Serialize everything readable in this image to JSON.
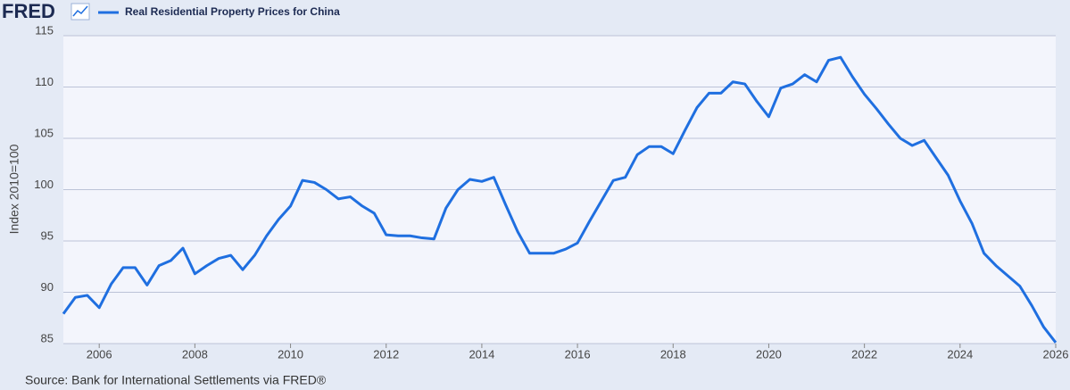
{
  "logo": "FRED",
  "source": "Source: Bank for International Settlements via FRED®",
  "chart_data": {
    "type": "line",
    "y_label": "Index 2010=100",
    "x": [
      2005.25,
      2005.5,
      2005.75,
      2006,
      2006.25,
      2006.5,
      2006.75,
      2007,
      2007.25,
      2007.5,
      2007.75,
      2008,
      2008.25,
      2008.5,
      2008.75,
      2009,
      2009.25,
      2009.5,
      2009.75,
      2010,
      2010.25,
      2010.5,
      2010.75,
      2011,
      2011.25,
      2011.5,
      2011.75,
      2012,
      2012.25,
      2012.5,
      2012.75,
      2013,
      2013.25,
      2013.5,
      2013.75,
      2014,
      2014.25,
      2014.5,
      2014.75,
      2015,
      2015.25,
      2015.5,
      2015.75,
      2016,
      2016.25,
      2016.5,
      2016.75,
      2017,
      2017.25,
      2017.5,
      2017.75,
      2018,
      2018.25,
      2018.5,
      2018.75,
      2019,
      2019.25,
      2019.5,
      2019.75,
      2020,
      2020.25,
      2020.5,
      2020.75,
      2021,
      2021.25,
      2021.5,
      2021.75,
      2022,
      2022.25,
      2022.5,
      2022.75,
      2023,
      2023.25,
      2023.5,
      2023.75,
      2024,
      2024.25,
      2024.5,
      2024.75,
      2025,
      2025.25,
      2025.5,
      2025.75,
      2026
    ],
    "series": [
      {
        "name": "Real Residential Property Prices for China",
        "color": "#1f6fe0",
        "values": [
          87.9,
          89.5,
          89.7,
          88.5,
          90.8,
          92.4,
          92.4,
          90.7,
          92.6,
          93.1,
          94.3,
          91.8,
          92.6,
          93.3,
          93.6,
          92.2,
          93.6,
          95.5,
          97.1,
          98.4,
          100.9,
          100.7,
          100.0,
          99.1,
          99.3,
          98.4,
          97.7,
          95.6,
          95.5,
          95.5,
          95.3,
          95.2,
          98.2,
          100.0,
          101.0,
          100.8,
          101.2,
          98.5,
          95.9,
          93.8,
          93.8,
          93.8,
          94.2,
          94.8,
          96.9,
          98.9,
          100.9,
          101.2,
          103.4,
          104.2,
          104.2,
          103.5,
          105.8,
          108.0,
          109.4,
          109.4,
          110.5,
          110.3,
          108.6,
          107.1,
          109.9,
          110.3,
          111.2,
          110.5,
          112.6,
          112.9,
          111.0,
          109.3,
          107.9,
          106.4,
          105.0,
          104.3,
          104.8,
          103.1,
          101.4,
          98.9,
          96.7,
          93.8,
          92.6,
          91.6,
          90.6,
          88.7,
          86.6,
          85.1
        ]
      }
    ],
    "xlim": [
      2005.25,
      2026
    ],
    "xticks": [
      2006,
      2008,
      2010,
      2012,
      2014,
      2016,
      2018,
      2020,
      2022,
      2024,
      2026
    ],
    "ylim": [
      85,
      115
    ],
    "yticks": [
      85,
      90,
      95,
      100,
      105,
      110,
      115
    ],
    "grid": true
  }
}
